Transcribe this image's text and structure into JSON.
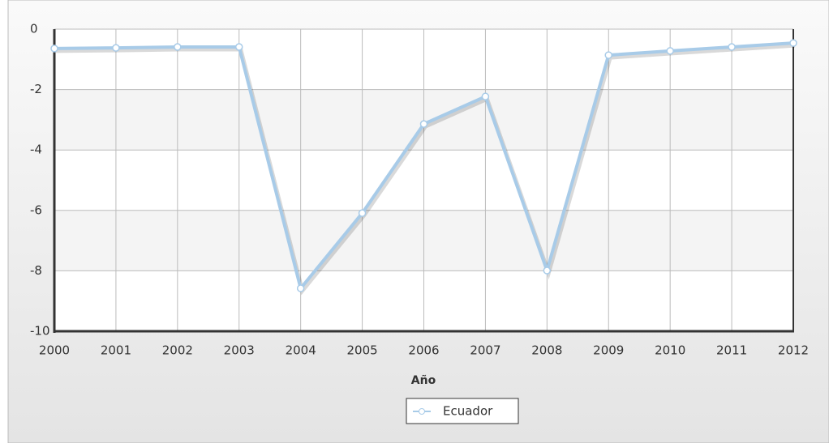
{
  "chart_data": {
    "type": "line",
    "x": [
      2000,
      2001,
      2002,
      2003,
      2004,
      2005,
      2006,
      2007,
      2008,
      2009,
      2010,
      2011,
      2012
    ],
    "series": [
      {
        "name": "Ecuador",
        "color": "#a8cbe8",
        "values": [
          -0.64,
          -0.62,
          -0.59,
          -0.59,
          -8.58,
          -6.09,
          -3.14,
          -2.23,
          -7.99,
          -0.86,
          -0.72,
          -0.59,
          -0.46
        ]
      }
    ],
    "xlim": [
      2000,
      2012
    ],
    "xticks": [
      2000,
      2001,
      2002,
      2003,
      2004,
      2005,
      2006,
      2007,
      2008,
      2009,
      2010,
      2011,
      2012
    ],
    "ylim": [
      -10,
      0
    ],
    "yticks": [
      -10,
      -8,
      -6,
      -4,
      -2,
      0
    ],
    "xlabel": "Año",
    "grid": true,
    "legend": "bottom"
  }
}
